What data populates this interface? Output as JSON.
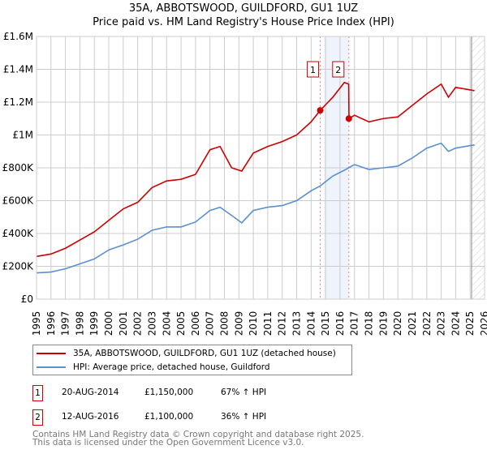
{
  "chart_data": {
    "type": "line",
    "title": "35A, ABBOTSWOOD, GUILDFORD, GU1 1UZ",
    "subtitle": "Price paid vs. HM Land Registry's House Price Index (HPI)",
    "xlim": [
      1995,
      2026
    ],
    "ylim": [
      0,
      1600000
    ],
    "yticks": [
      0,
      200000,
      400000,
      600000,
      800000,
      1000000,
      1200000,
      1400000,
      1600000
    ],
    "ytick_labels": [
      "£0",
      "£200K",
      "£400K",
      "£600K",
      "£800K",
      "£1M",
      "£1.2M",
      "£1.4M",
      "£1.6M"
    ],
    "xticks": [
      "1995",
      "1996",
      "1997",
      "1998",
      "1999",
      "2000",
      "2001",
      "2002",
      "2003",
      "2004",
      "2005",
      "2006",
      "2007",
      "2008",
      "2009",
      "2010",
      "2011",
      "2012",
      "2013",
      "2014",
      "2015",
      "2016",
      "2017",
      "2018",
      "2019",
      "2020",
      "2021",
      "2022",
      "2023",
      "2024",
      "2025",
      "2026"
    ],
    "grid": true,
    "series": [
      {
        "name": "35A, ABBOTSWOOD, GUILDFORD, GU1 1UZ (detached house)",
        "color": "#cc0000",
        "x": [
          1995,
          1996,
          1997,
          1998,
          1999,
          2000,
          2001,
          2002,
          2003,
          2004,
          2005,
          2006,
          2007,
          2007.7,
          2008.5,
          2009.2,
          2010,
          2011,
          2012,
          2013,
          2014,
          2014.63,
          2015.5,
          2016.3,
          2016.6,
          2016.62,
          2017,
          2018,
          2019,
          2020,
          2021,
          2022,
          2023,
          2023.5,
          2024,
          2025.3
        ],
        "y": [
          260000,
          275000,
          310000,
          360000,
          410000,
          480000,
          550000,
          590000,
          680000,
          720000,
          730000,
          760000,
          910000,
          930000,
          800000,
          780000,
          890000,
          930000,
          960000,
          1000000,
          1080000,
          1150000,
          1230000,
          1320000,
          1310000,
          1100000,
          1120000,
          1080000,
          1100000,
          1110000,
          1180000,
          1250000,
          1310000,
          1230000,
          1290000,
          1270000
        ]
      },
      {
        "name": "HPI: Average price, detached house, Guildford",
        "color": "#5b8fd0",
        "x": [
          1995,
          1996,
          1997,
          1998,
          1999,
          2000,
          2001,
          2002,
          2003,
          2004,
          2005,
          2006,
          2007,
          2007.7,
          2008.5,
          2009.2,
          2010,
          2011,
          2012,
          2013,
          2014,
          2014.63,
          2015.5,
          2016.4,
          2016.6,
          2017,
          2018,
          2019,
          2020,
          2021,
          2022,
          2023,
          2023.5,
          2024,
          2025.3
        ],
        "y": [
          160000,
          165000,
          185000,
          215000,
          245000,
          300000,
          330000,
          365000,
          420000,
          440000,
          440000,
          470000,
          540000,
          560000,
          510000,
          465000,
          540000,
          560000,
          570000,
          600000,
          660000,
          690000,
          750000,
          790000,
          800000,
          820000,
          790000,
          800000,
          810000,
          860000,
          920000,
          950000,
          900000,
          920000,
          940000
        ]
      }
    ],
    "sales": [
      {
        "label": "1",
        "x": 2014.63,
        "y": 1150000,
        "date": "20-AUG-2014",
        "price": "£1,150,000",
        "hpi": "67% ↑ HPI"
      },
      {
        "label": "2",
        "x": 2016.61,
        "y": 1100000,
        "date": "12-AUG-2016",
        "price": "£1,100,000",
        "hpi": "36% ↑ HPI"
      }
    ],
    "shaded_period": [
      2014.9,
      2016.61
    ],
    "forecast_from": 2025.1
  },
  "legend": {
    "red": "35A, ABBOTSWOOD, GUILDFORD, GU1 1UZ (detached house)",
    "blue": "HPI: Average price, detached house, Guildford"
  },
  "footer": {
    "line1": "Contains HM Land Registry data © Crown copyright and database right 2025.",
    "line2": "This data is licensed under the Open Government Licence v3.0."
  }
}
